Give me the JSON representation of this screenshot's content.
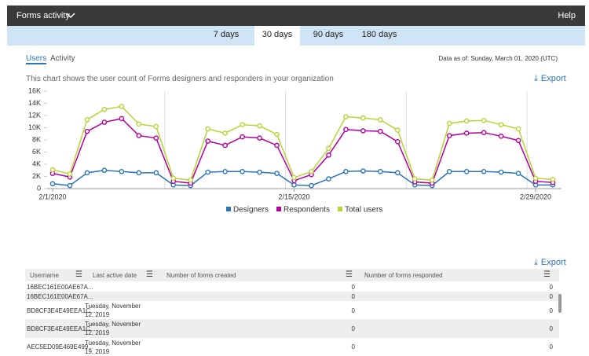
{
  "header": {
    "title": "Forms activity",
    "help": "Help"
  },
  "tabs": [
    "7 days",
    "30 days",
    "90 days",
    "180 days"
  ],
  "selected_tab": 1,
  "subtabs": [
    "Users",
    "Activity"
  ],
  "selected_subtab": 0,
  "data_as_of": "Data as of: Sunday, March 01, 2020 (UTC)",
  "description": "This chart shows the user count of Forms designers and responders in your organization",
  "export_label": "Export",
  "chart_data": {
    "type": "line",
    "categories": [
      "2/1/2020",
      null,
      null,
      null,
      null,
      null,
      null,
      null,
      null,
      null,
      null,
      null,
      null,
      null,
      "2/15/2020",
      null,
      null,
      null,
      null,
      null,
      null,
      null,
      null,
      null,
      null,
      null,
      null,
      null,
      "2/29/2020",
      null
    ],
    "ylim": [
      0,
      16000
    ],
    "yticks": [
      0,
      {
        "value": 2000,
        "label": "2K"
      },
      {
        "value": 4000,
        "label": "4K"
      },
      {
        "value": 6000,
        "label": "6K"
      },
      {
        "value": 8000,
        "label": "8K"
      },
      {
        "value": 10000,
        "label": "10K"
      },
      {
        "value": 12000,
        "label": "12K"
      },
      {
        "value": 14000,
        "label": "14K"
      },
      {
        "value": 16000,
        "label": "16K"
      }
    ],
    "grid": false,
    "series": [
      {
        "name": "Designers",
        "color": "#2b74b8",
        "values": [
          800,
          500,
          2600,
          3000,
          2800,
          2600,
          2600,
          600,
          500,
          2700,
          2800,
          2800,
          2700,
          2500,
          600,
          500,
          1600,
          2800,
          2900,
          2800,
          2600,
          600,
          500,
          2800,
          2800,
          2800,
          2700,
          2500,
          600,
          600
        ]
      },
      {
        "name": "Respondents",
        "color": "#b4009e",
        "values": [
          2500,
          1900,
          9400,
          10900,
          11500,
          8700,
          8300,
          1200,
          900,
          7800,
          7100,
          8500,
          8300,
          7100,
          1300,
          2300,
          5500,
          9700,
          9500,
          9400,
          7700,
          1100,
          900,
          8700,
          9100,
          9200,
          8600,
          7900,
          1200,
          1000
        ]
      },
      {
        "name": "Total users",
        "color": "#b7d334",
        "values": [
          3100,
          2400,
          11300,
          13000,
          13500,
          10600,
          10200,
          1700,
          1400,
          9800,
          9100,
          10500,
          10300,
          8900,
          1800,
          2800,
          6600,
          11800,
          11600,
          11300,
          9600,
          1600,
          1400,
          10700,
          11100,
          11200,
          10500,
          9800,
          1700,
          1500
        ]
      }
    ]
  },
  "table": {
    "columns": [
      "Username",
      "Last active date",
      "Number of forms created",
      "Number of forms responded"
    ],
    "rows": [
      [
        "16BEC161E00AE67A...",
        null,
        0,
        0
      ],
      [
        "16BEC161E00AE67A...",
        null,
        0,
        0
      ],
      [
        "BD8CF3E4E49EEA1C...",
        "Tuesday, November 12, 2019",
        0,
        0
      ],
      [
        "BD8CF3E4E49EEA1C...",
        "Tuesday, November 12, 2019",
        0,
        0
      ],
      [
        "AEC5ED09E469E499...",
        "Tuesday, November 19, 2019",
        0,
        0
      ]
    ]
  }
}
